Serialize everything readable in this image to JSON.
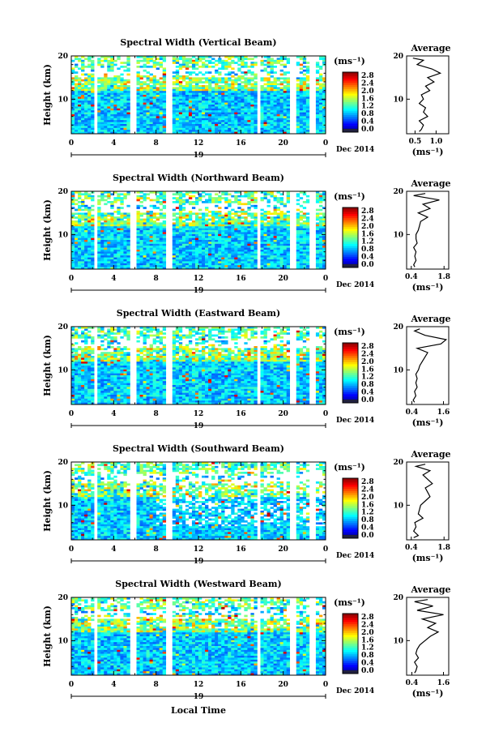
{
  "shared": {
    "ylabel": "Height (km)",
    "colorbar_unit": "(ms⁻¹)",
    "colorbar_ticks": [
      "2.8",
      "2.4",
      "2.0",
      "1.6",
      "1.2",
      "0.8",
      "0.4",
      "0.0"
    ],
    "colorbar_range": [
      0.0,
      2.8
    ],
    "x_ticks": [
      "0",
      "4",
      "8",
      "12",
      "16",
      "20",
      "0"
    ],
    "x_range_hours": [
      0,
      24
    ],
    "y_ticks": [
      "20",
      "10"
    ],
    "y_range_km": [
      2,
      20
    ],
    "date_day": "19",
    "date_month_year": "Dec 2014",
    "avg_title": "Average",
    "avg_unit": "(ms⁻¹)",
    "xlabel": "Local Time"
  },
  "panels": [
    {
      "title": "Spectral Width (Vertical Beam)",
      "avg_ticks": [
        "0.5",
        "1.0"
      ],
      "avg_range": [
        0.3,
        1.3
      ],
      "avg_tick_values": [
        0.5,
        1.0
      ]
    },
    {
      "title": "Spectral Width (Northward Beam)",
      "avg_ticks": [
        "0.4",
        "1.8"
      ],
      "avg_range": [
        0.2,
        2.0
      ],
      "avg_tick_values": [
        0.4,
        1.8
      ]
    },
    {
      "title": "Spectral Width (Eastward Beam)",
      "avg_ticks": [
        "0.4",
        "1.6"
      ],
      "avg_range": [
        0.2,
        1.8
      ],
      "avg_tick_values": [
        0.4,
        1.6
      ]
    },
    {
      "title": "Spectral Width (Southward Beam)",
      "avg_ticks": [
        "0.4",
        "1.8"
      ],
      "avg_range": [
        0.2,
        2.0
      ],
      "avg_tick_values": [
        0.4,
        1.8
      ]
    },
    {
      "title": "Spectral Width (Westward Beam)",
      "avg_ticks": [
        "0.4",
        "1.6"
      ],
      "avg_range": [
        0.2,
        1.8
      ],
      "avg_tick_values": [
        0.4,
        1.6
      ]
    }
  ],
  "chart_data": [
    {
      "type": "heatmap",
      "title": "Spectral Width (Vertical Beam)",
      "ylabel": "Height (km)",
      "xlim": [
        0,
        24
      ],
      "ylim": [
        2,
        20
      ],
      "zlim": [
        0,
        2.8
      ],
      "avg_profile": {
        "type": "line",
        "title": "Average",
        "xlabel": "(ms⁻¹)",
        "xlim": [
          0.3,
          1.3
        ],
        "height": [
          2.5,
          3,
          4,
          5,
          6,
          7,
          8,
          9,
          10,
          11,
          12,
          13,
          14,
          15,
          16,
          17,
          18,
          19,
          19.5
        ],
        "value": [
          0.6,
          0.65,
          0.7,
          0.6,
          0.8,
          0.7,
          0.75,
          0.6,
          0.7,
          0.65,
          0.85,
          0.75,
          0.95,
          0.8,
          1.1,
          0.9,
          0.55,
          0.7,
          0.45
        ]
      }
    },
    {
      "type": "heatmap",
      "title": "Spectral Width (Northward Beam)",
      "ylabel": "Height (km)",
      "xlim": [
        0,
        24
      ],
      "ylim": [
        2,
        20
      ],
      "zlim": [
        0,
        2.8
      ],
      "avg_profile": {
        "type": "line",
        "title": "Average",
        "xlabel": "(ms⁻¹)",
        "xlim": [
          0.2,
          2.0
        ],
        "height": [
          2.5,
          3,
          4,
          5,
          6,
          7,
          8,
          9,
          10,
          11,
          12,
          13,
          14,
          15,
          16,
          17,
          18,
          19,
          19.5
        ],
        "value": [
          0.55,
          0.5,
          0.6,
          0.55,
          0.6,
          0.5,
          0.65,
          0.6,
          0.6,
          0.7,
          0.75,
          0.8,
          1.1,
          0.7,
          1.2,
          0.9,
          1.6,
          0.5,
          1.0
        ]
      }
    },
    {
      "type": "heatmap",
      "title": "Spectral Width (Eastward Beam)",
      "ylabel": "Height (km)",
      "xlim": [
        0,
        24
      ],
      "ylim": [
        2,
        20
      ],
      "zlim": [
        0,
        2.8
      ],
      "avg_profile": {
        "type": "line",
        "title": "Average",
        "xlabel": "(ms⁻¹)",
        "xlim": [
          0.2,
          1.8
        ],
        "height": [
          2.5,
          3,
          4,
          5,
          6,
          7,
          8,
          9,
          10,
          11,
          12,
          13,
          14,
          15,
          16,
          17,
          18,
          19,
          19.5
        ],
        "value": [
          0.5,
          0.45,
          0.55,
          0.5,
          0.6,
          0.55,
          0.6,
          0.55,
          0.65,
          0.7,
          0.8,
          0.9,
          1.0,
          0.6,
          1.5,
          1.7,
          0.9,
          0.5,
          0.7
        ]
      }
    },
    {
      "type": "heatmap",
      "title": "Spectral Width (Southward Beam)",
      "ylabel": "Height (km)",
      "xlim": [
        0,
        24
      ],
      "ylim": [
        2,
        20
      ],
      "zlim": [
        0,
        2.8
      ],
      "avg_profile": {
        "type": "line",
        "title": "Average",
        "xlabel": "(ms⁻¹)",
        "xlim": [
          0.2,
          2.0
        ],
        "height": [
          2.5,
          3,
          4,
          5,
          6,
          7,
          8,
          9,
          10,
          11,
          12,
          13,
          14,
          15,
          16,
          17,
          18,
          19,
          19.5
        ],
        "value": [
          0.5,
          0.7,
          0.5,
          0.6,
          0.55,
          0.9,
          0.7,
          0.75,
          0.8,
          1.0,
          1.2,
          1.1,
          1.0,
          1.3,
          1.1,
          0.9,
          1.2,
          0.6,
          1.0
        ]
      }
    },
    {
      "type": "heatmap",
      "title": "Spectral Width (Westward Beam)",
      "ylabel": "Height (km)",
      "xlim": [
        0,
        24
      ],
      "ylim": [
        2,
        20
      ],
      "zlim": [
        0,
        2.8
      ],
      "avg_profile": {
        "type": "line",
        "title": "Average",
        "xlabel": "(ms⁻¹)",
        "xlim": [
          0.2,
          1.8
        ],
        "height": [
          2.5,
          3,
          4,
          5,
          6,
          7,
          8,
          9,
          10,
          11,
          12,
          13,
          14,
          15,
          16,
          17,
          18,
          19,
          19.5
        ],
        "value": [
          0.5,
          0.55,
          0.6,
          0.5,
          0.65,
          0.55,
          0.6,
          0.7,
          0.9,
          1.1,
          1.4,
          1.0,
          1.3,
          0.8,
          1.6,
          0.6,
          1.2,
          0.5,
          1.0
        ]
      }
    }
  ]
}
